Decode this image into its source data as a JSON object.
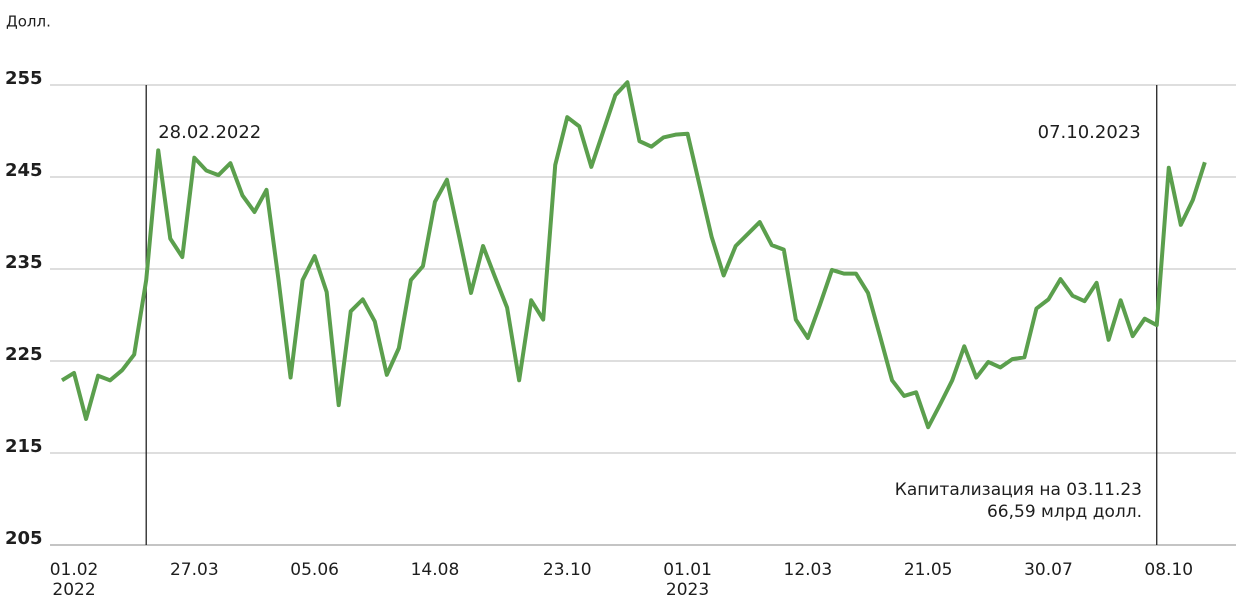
{
  "chart_data": {
    "type": "line",
    "y_unit_label": "Долл.",
    "categories": [
      null,
      "01.02",
      null,
      null,
      null,
      null,
      null,
      null,
      null,
      null,
      null,
      "27.03",
      null,
      null,
      null,
      null,
      null,
      null,
      null,
      null,
      null,
      "05.06",
      null,
      null,
      null,
      null,
      null,
      null,
      null,
      null,
      null,
      "14.08",
      null,
      null,
      null,
      null,
      null,
      null,
      null,
      null,
      null,
      null,
      "23.10",
      null,
      null,
      null,
      null,
      null,
      null,
      null,
      null,
      null,
      "01.01",
      null,
      null,
      null,
      null,
      null,
      null,
      null,
      null,
      null,
      "12.03",
      null,
      null,
      null,
      null,
      null,
      null,
      null,
      null,
      null,
      "21.05",
      null,
      null,
      null,
      null,
      null,
      null,
      null,
      null,
      null,
      "30.07",
      null,
      null,
      null,
      null,
      null,
      null,
      null,
      null,
      null,
      "08.10",
      null,
      null,
      null
    ],
    "category_years": [
      null,
      "2022",
      null,
      null,
      null,
      null,
      null,
      null,
      null,
      null,
      null,
      null,
      null,
      null,
      null,
      null,
      null,
      null,
      null,
      null,
      null,
      null,
      null,
      null,
      null,
      null,
      null,
      null,
      null,
      null,
      null,
      null,
      null,
      null,
      null,
      null,
      null,
      null,
      null,
      null,
      null,
      null,
      null,
      null,
      null,
      null,
      null,
      null,
      null,
      null,
      null,
      null,
      "2023",
      null,
      null,
      null,
      null,
      null,
      null,
      null,
      null,
      null,
      null,
      null,
      null,
      null,
      null,
      null,
      null,
      null,
      null,
      null,
      null,
      null,
      null,
      null,
      null,
      null,
      null,
      null,
      null,
      null,
      null,
      null,
      null,
      null,
      null,
      null,
      null,
      null,
      null,
      null,
      null,
      null,
      null,
      null
    ],
    "series": [
      {
        "color": "#5b9f4d",
        "values": [
          222.9,
          223.7,
          218.7,
          223.4,
          222.9,
          224.0,
          225.7,
          233.8,
          247.9,
          238.3,
          236.3,
          247.1,
          245.7,
          245.2,
          246.5,
          243.0,
          241.2,
          243.6,
          233.8,
          223.2,
          233.8,
          236.4,
          232.5,
          220.2,
          230.4,
          231.7,
          229.3,
          223.5,
          226.4,
          233.8,
          235.3,
          242.3,
          244.7,
          238.6,
          232.4,
          237.5,
          234.1,
          230.8,
          222.9,
          231.6,
          229.5,
          246.3,
          251.5,
          250.5,
          246.1,
          250.0,
          253.9,
          255.3,
          248.9,
          248.3,
          249.3,
          249.6,
          249.7,
          244.1,
          238.5,
          234.3,
          237.5,
          238.8,
          240.1,
          237.6,
          237.1,
          229.5,
          227.5,
          231.1,
          234.9,
          234.5,
          234.5,
          232.4,
          227.7,
          222.9,
          221.2,
          221.6,
          217.8,
          220.3,
          222.9,
          226.6,
          223.2,
          224.9,
          224.3,
          225.2,
          225.4,
          230.7,
          231.7,
          233.9,
          232.1,
          231.5,
          233.5,
          227.3,
          231.6,
          227.7,
          229.6,
          228.9,
          246.0,
          239.8,
          242.5,
          246.6
        ]
      }
    ],
    "ylim": [
      205,
      255
    ],
    "yticks": [
      205,
      215,
      225,
      235,
      245,
      255
    ],
    "grid": true,
    "annotations": [
      {
        "text": "28.02.2022",
        "at": 7
      },
      {
        "text": "07.10.2023",
        "at": 91
      }
    ],
    "note": [
      "Капитализация на 03.11.23",
      "66,59 млрд долл."
    ]
  }
}
